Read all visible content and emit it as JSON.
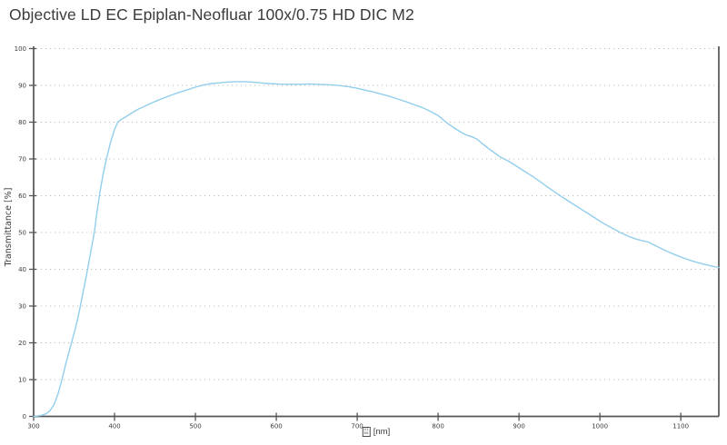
{
  "title": "Objective LD EC Epiplan-Neofluar 100x/0.75 HD DIC M2",
  "colors": {
    "background": "#ffffff",
    "title_text": "#3b3b3b",
    "axis": "#555555",
    "tick_text": "#3c3c3c",
    "grid": "#bdbdbd",
    "curve": "#92ceec"
  },
  "x_axis": {
    "missing_glyph_rows": [
      "03",
      "BB"
    ],
    "unit_label": "[nm]"
  },
  "chart_data": {
    "type": "line",
    "title": "Objective LD EC Epiplan-Neofluar 100x/0.75 HD DIC M2",
    "xlabel": "[nm]",
    "ylabel": "Transmittance [%]",
    "xlim": [
      300,
      1147
    ],
    "ylim": [
      0,
      100
    ],
    "x_ticks": [
      300,
      400,
      500,
      600,
      700,
      800,
      900,
      1000,
      1100
    ],
    "y_ticks": [
      0,
      10,
      20,
      30,
      40,
      50,
      60,
      70,
      80,
      90,
      100
    ],
    "grid": "horizontal-dotted",
    "legend": "none",
    "series": [
      {
        "name": "Transmittance",
        "color": "#92ceec",
        "points": [
          [
            300,
            0
          ],
          [
            305,
            0.1
          ],
          [
            310,
            0.3
          ],
          [
            315,
            0.7
          ],
          [
            320,
            1.5
          ],
          [
            325,
            3.1
          ],
          [
            330,
            6
          ],
          [
            335,
            10
          ],
          [
            340,
            14.5
          ],
          [
            345,
            18.6
          ],
          [
            350,
            22.6
          ],
          [
            355,
            27
          ],
          [
            360,
            32.5
          ],
          [
            365,
            38
          ],
          [
            370,
            44
          ],
          [
            375,
            50
          ],
          [
            378,
            55
          ],
          [
            382,
            61
          ],
          [
            386,
            66
          ],
          [
            390,
            70
          ],
          [
            395,
            74.5
          ],
          [
            400,
            78
          ],
          [
            404,
            80
          ],
          [
            408,
            80.7
          ],
          [
            415,
            81.6
          ],
          [
            422,
            82.6
          ],
          [
            430,
            83.6
          ],
          [
            440,
            84.6
          ],
          [
            450,
            85.6
          ],
          [
            460,
            86.5
          ],
          [
            470,
            87.3
          ],
          [
            480,
            88.1
          ],
          [
            490,
            88.8
          ],
          [
            500,
            89.5
          ],
          [
            510,
            90.1
          ],
          [
            520,
            90.5
          ],
          [
            530,
            90.7
          ],
          [
            540,
            90.9
          ],
          [
            550,
            91
          ],
          [
            560,
            91
          ],
          [
            570,
            90.9
          ],
          [
            575,
            90.8
          ],
          [
            580,
            90.7
          ],
          [
            590,
            90.5
          ],
          [
            600,
            90.4
          ],
          [
            610,
            90.3
          ],
          [
            620,
            90.3
          ],
          [
            630,
            90.3
          ],
          [
            640,
            90.4
          ],
          [
            650,
            90.3
          ],
          [
            660,
            90.2
          ],
          [
            670,
            90.1
          ],
          [
            680,
            89.9
          ],
          [
            690,
            89.6
          ],
          [
            700,
            89.2
          ],
          [
            710,
            88.7
          ],
          [
            720,
            88.2
          ],
          [
            730,
            87.6
          ],
          [
            740,
            87
          ],
          [
            750,
            86.3
          ],
          [
            760,
            85.6
          ],
          [
            770,
            84.8
          ],
          [
            780,
            84
          ],
          [
            790,
            83
          ],
          [
            800,
            81.8
          ],
          [
            807,
            80.5
          ],
          [
            812,
            79.6
          ],
          [
            820,
            78.4
          ],
          [
            828,
            77.3
          ],
          [
            835,
            76.5
          ],
          [
            842,
            76
          ],
          [
            848,
            75.4
          ],
          [
            855,
            74.1
          ],
          [
            862,
            72.9
          ],
          [
            870,
            71.6
          ],
          [
            878,
            70.4
          ],
          [
            886,
            69.5
          ],
          [
            895,
            68.3
          ],
          [
            905,
            66.9
          ],
          [
            915,
            65.5
          ],
          [
            925,
            64
          ],
          [
            935,
            62.4
          ],
          [
            945,
            60.9
          ],
          [
            955,
            59.4
          ],
          [
            965,
            58
          ],
          [
            975,
            56.6
          ],
          [
            985,
            55.2
          ],
          [
            995,
            53.8
          ],
          [
            1005,
            52.4
          ],
          [
            1015,
            51.2
          ],
          [
            1025,
            50
          ],
          [
            1035,
            49
          ],
          [
            1045,
            48.2
          ],
          [
            1052,
            47.8
          ],
          [
            1060,
            47.4
          ],
          [
            1068,
            46.5
          ],
          [
            1078,
            45.4
          ],
          [
            1088,
            44.4
          ],
          [
            1098,
            43.5
          ],
          [
            1108,
            42.7
          ],
          [
            1118,
            42
          ],
          [
            1128,
            41.4
          ],
          [
            1138,
            40.9
          ],
          [
            1147,
            40.5
          ]
        ]
      }
    ]
  }
}
